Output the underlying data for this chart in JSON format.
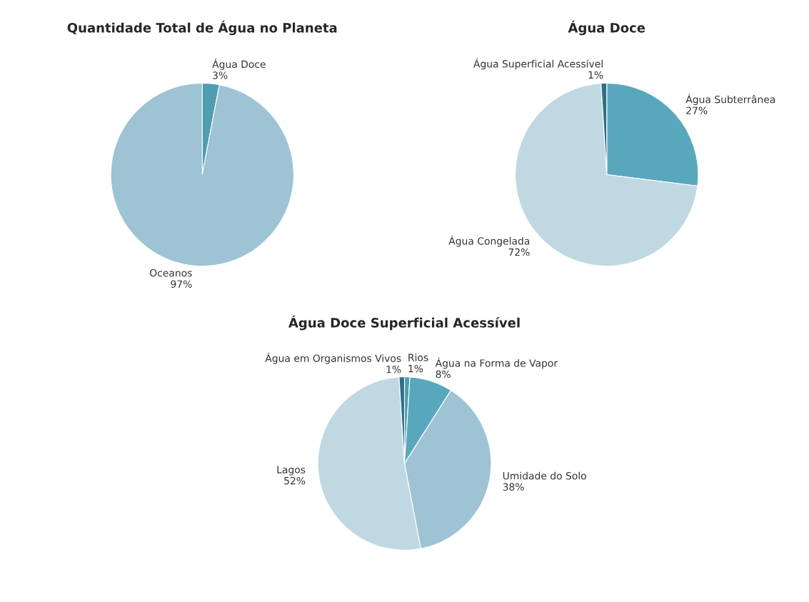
{
  "chart_data": [
    {
      "type": "pie",
      "title": "Quantidade Total de Água no Planeta",
      "categories": [
        "Água Doce",
        "Oceanos"
      ],
      "values": [
        3,
        97
      ],
      "value_labels": [
        "3%",
        "97%"
      ],
      "colors": [
        "#4f9db0",
        "#9dc3d4"
      ]
    },
    {
      "type": "pie",
      "title": "Água Doce",
      "categories": [
        "Água Subterrânea",
        "Água Congelada",
        "Água Superficial Acessível"
      ],
      "values": [
        27,
        72,
        1
      ],
      "value_labels": [
        "27%",
        "72%",
        "1%"
      ],
      "colors": [
        "#59a7bd",
        "#c0d8e2",
        "#2f6f86"
      ]
    },
    {
      "type": "pie",
      "title": "Água Doce Superficial Acessível",
      "categories": [
        "Rios",
        "Água na Forma de Vapor",
        "Umidade do Solo",
        "Lagos",
        "Água em Organismos Vivos"
      ],
      "values": [
        1,
        8,
        38,
        52,
        1
      ],
      "value_labels": [
        "1%",
        "8%",
        "38%",
        "52%",
        "1%"
      ],
      "colors": [
        "#4f9db0",
        "#59a7bd",
        "#9dc3d4",
        "#c0d8e2",
        "#2f6f86"
      ]
    }
  ]
}
